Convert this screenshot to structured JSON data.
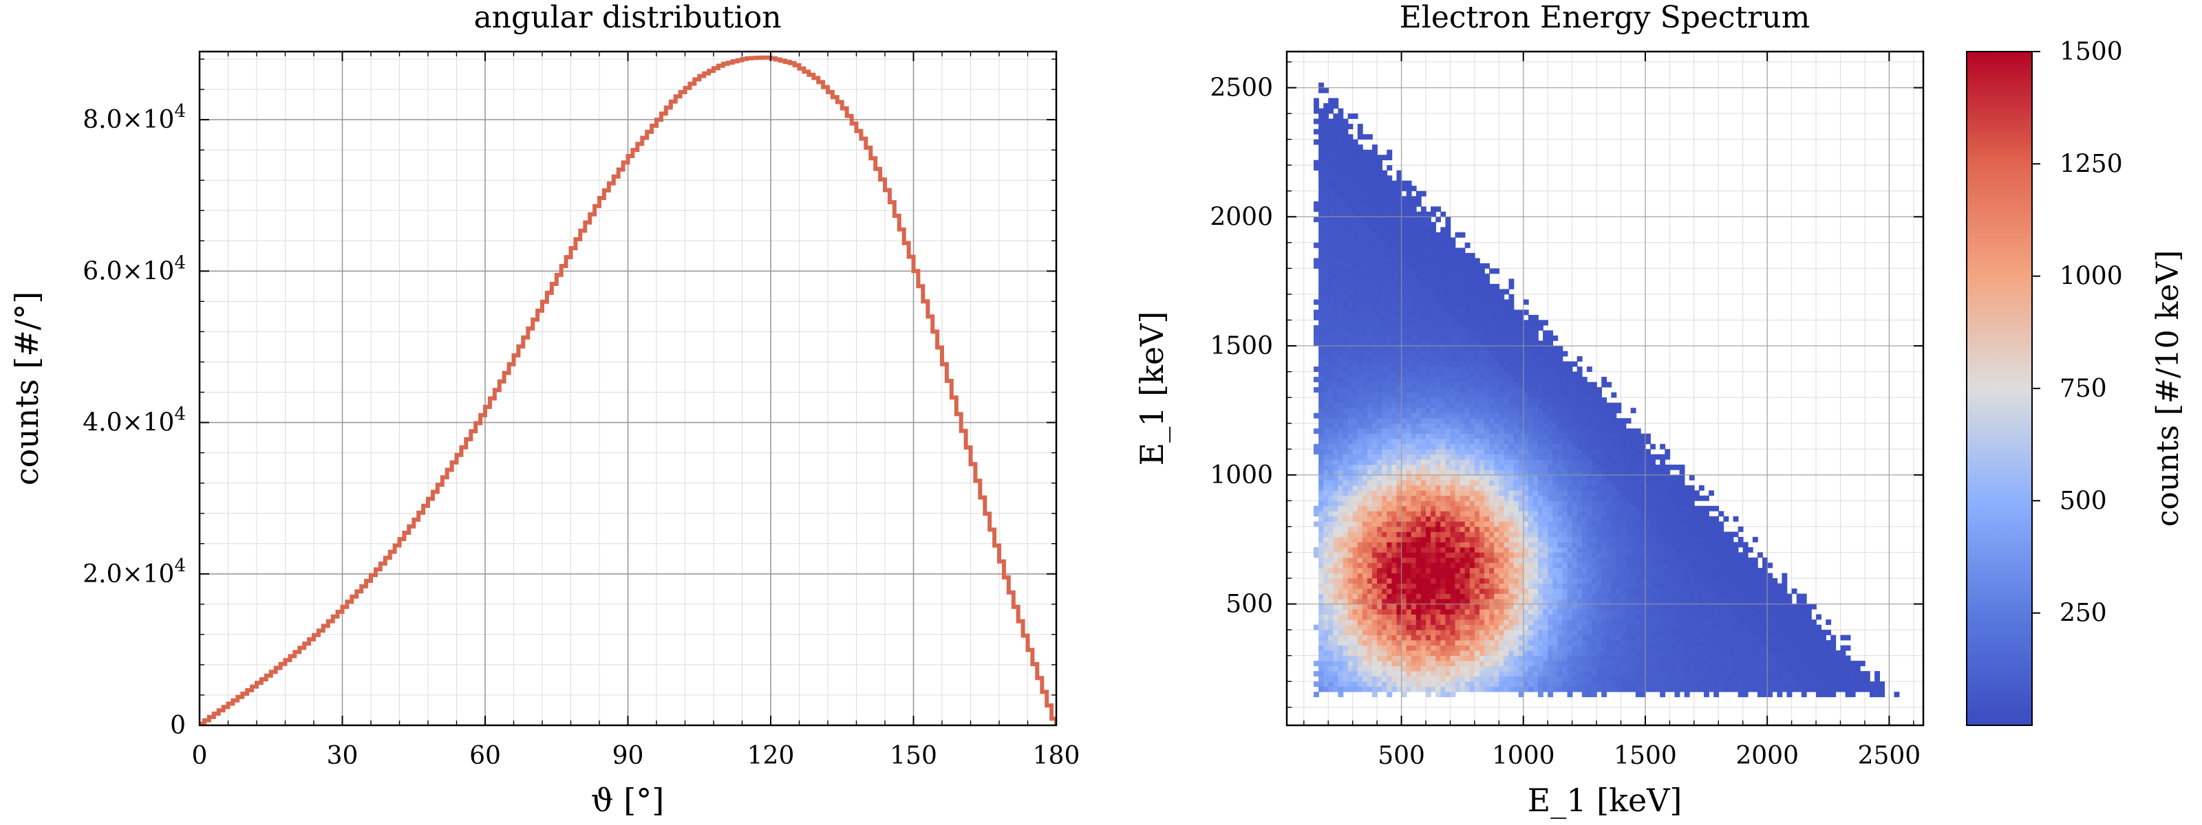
{
  "colors": {
    "line": "#d9664e",
    "grid_major": "#9a9a9a",
    "grid_minor": "#dcdcdc",
    "axes": "#000000",
    "cmap_low": "#3b4cc0",
    "cmap_mid": "#dddddd",
    "cmap_high": "#b40426"
  },
  "chart_data": [
    {
      "type": "line",
      "style": "step",
      "title": "angular distribution",
      "xlabel": "ϑ [°]",
      "ylabel": "counts [#/°]",
      "xlim": [
        0,
        180
      ],
      "ylim": [
        0,
        89000
      ],
      "x_ticks": [
        0,
        30,
        60,
        90,
        120,
        150,
        180
      ],
      "x_tick_labels": [
        "0",
        "30",
        "60",
        "90",
        "120",
        "150",
        "180"
      ],
      "y_ticks": [
        0,
        20000,
        40000,
        60000,
        80000
      ],
      "y_tick_labels": [
        {
          "mantissa": "0",
          "exp": ""
        },
        {
          "mantissa": "2.0×10",
          "exp": "4"
        },
        {
          "mantissa": "4.0×10",
          "exp": "4"
        },
        {
          "mantissa": "6.0×10",
          "exp": "4"
        },
        {
          "mantissa": "8.0×10",
          "exp": "4"
        }
      ],
      "grid": true,
      "series": [
        {
          "x": [
            0,
            5,
            10,
            15,
            20,
            25,
            30,
            35,
            40,
            45,
            50,
            55,
            60,
            65,
            70,
            75,
            80,
            85,
            90,
            95,
            100,
            105,
            110,
            115,
            118,
            120,
            125,
            130,
            135,
            140,
            145,
            150,
            155,
            160,
            165,
            170,
            175,
            178,
            180
          ],
          "y": [
            0,
            2200,
            4400,
            6800,
            9400,
            12200,
            15300,
            18700,
            22500,
            26700,
            31300,
            36200,
            41500,
            47100,
            53000,
            58900,
            64800,
            70200,
            74800,
            78800,
            82800,
            85600,
            87300,
            88100,
            88200,
            88200,
            87400,
            85300,
            82000,
            77000,
            70000,
            61000,
            51000,
            40000,
            29000,
            18500,
            9000,
            3500,
            0
          ]
        }
      ]
    },
    {
      "type": "heatmap",
      "title": "Electron Energy Spectrum",
      "xlabel": "E_1 [keV]",
      "ylabel": "E_1 [keV]",
      "xlim": [
        30,
        2640
      ],
      "ylim": [
        30,
        2640
      ],
      "x_ticks": [
        500,
        1000,
        1500,
        2000,
        2500
      ],
      "y_ticks": [
        500,
        1000,
        1500,
        2000,
        2500
      ],
      "bin_width_kev": 10,
      "peak": {
        "x": 620,
        "y": 620,
        "value": 1500
      },
      "colorbar": {
        "label": "counts [#/10 keV]",
        "range": [
          0,
          1500
        ],
        "ticks": [
          250,
          500,
          750,
          1000,
          1250,
          1500
        ]
      },
      "grid": true
    }
  ]
}
